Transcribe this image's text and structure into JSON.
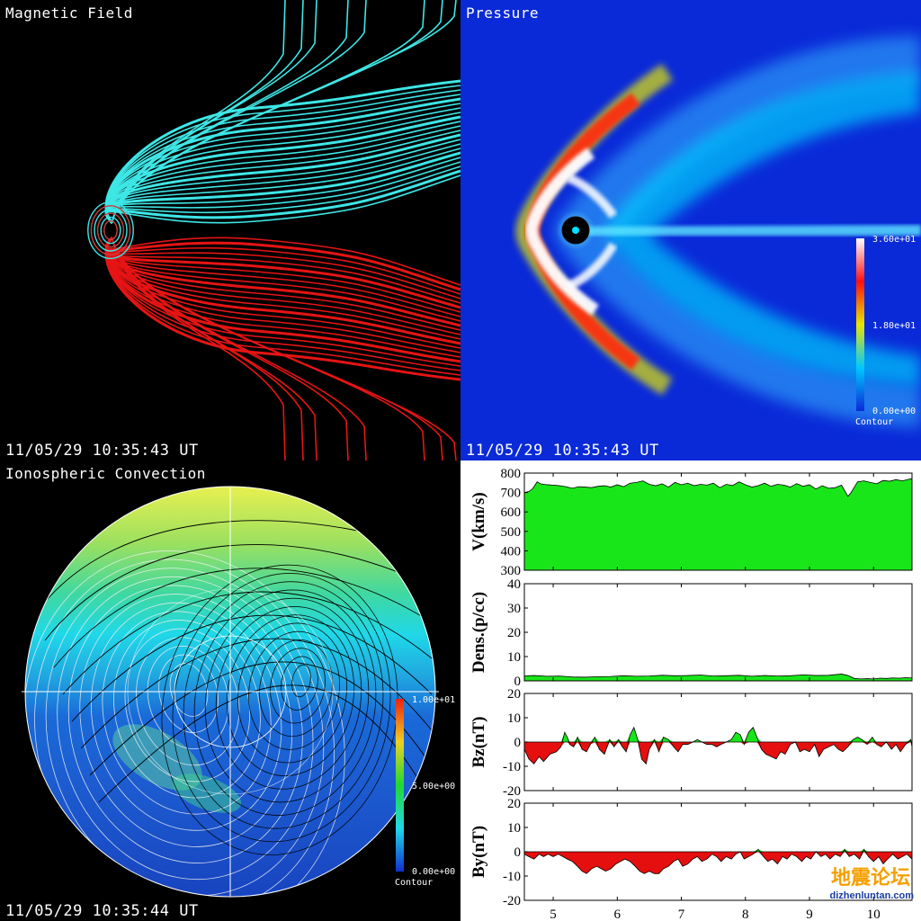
{
  "panels": {
    "magnetic": {
      "title": "Magnetic Field",
      "timestamp": "11/05/29 10:35:43 UT"
    },
    "pressure": {
      "title": "Pressure",
      "timestamp": "11/05/29 10:35:43 UT",
      "colorbar": {
        "max": "3.60e+01",
        "mid": "1.80e+01",
        "min": "0.00e+00",
        "label": "Contour"
      }
    },
    "iono": {
      "title": "Ionospheric Convection",
      "timestamp": "11/05/29 10:35:44 UT",
      "colorbar": {
        "max": "1.00e+01",
        "mid": "5.00e+00",
        "min": "0.00e+00",
        "label": "Contour"
      }
    }
  },
  "watermark": {
    "cn": "地震论坛",
    "url": "dizhenluntan.com"
  },
  "colors": {
    "speed_fill": "#19e619",
    "pos_fill": "#19e619",
    "neg_fill": "#e60f0f",
    "field_north": "#3ee6e6",
    "field_south": "#e61414"
  },
  "chart_data": {
    "type": "area",
    "x_ticks": [
      "5",
      "6",
      "7",
      "8",
      "9",
      "10"
    ],
    "xlim": [
      4.55,
      10.6
    ],
    "subplots": [
      {
        "id": "speed",
        "ylabel": "V(km/s)",
        "ylim": [
          300,
          800
        ],
        "baseline": 300,
        "yticks": [
          "300",
          "400",
          "500",
          "600",
          "700",
          "800"
        ],
        "x": [
          4.55,
          4.62,
          4.68,
          4.75,
          4.8,
          4.9,
          5.0,
          5.1,
          5.2,
          5.3,
          5.4,
          5.5,
          5.6,
          5.7,
          5.8,
          5.9,
          6.0,
          6.1,
          6.2,
          6.3,
          6.4,
          6.5,
          6.6,
          6.7,
          6.8,
          6.9,
          7.0,
          7.1,
          7.2,
          7.3,
          7.4,
          7.5,
          7.6,
          7.7,
          7.8,
          7.9,
          8.0,
          8.1,
          8.2,
          8.3,
          8.4,
          8.5,
          8.6,
          8.7,
          8.8,
          8.9,
          9.0,
          9.1,
          9.2,
          9.3,
          9.4,
          9.5,
          9.6,
          9.65,
          9.75,
          9.85,
          9.95,
          10.05,
          10.15,
          10.25,
          10.35,
          10.45,
          10.55,
          10.6
        ],
        "values": [
          700,
          705,
          720,
          755,
          745,
          740,
          738,
          735,
          730,
          722,
          730,
          728,
          725,
          732,
          735,
          728,
          740,
          730,
          748,
          752,
          760,
          742,
          735,
          745,
          728,
          752,
          740,
          748,
          735,
          742,
          738,
          748,
          725,
          742,
          736,
          755,
          740,
          728,
          735,
          748,
          732,
          742,
          738,
          728,
          746,
          732,
          740,
          718,
          735,
          722,
          725,
          738,
          680,
          700,
          755,
          760,
          752,
          745,
          762,
          758,
          766,
          760,
          768,
          772
        ]
      },
      {
        "id": "density",
        "ylabel": "Dens.(p/cc)",
        "ylim": [
          0,
          40
        ],
        "baseline": 0,
        "yticks": [
          "0",
          "10",
          "20",
          "30",
          "40"
        ],
        "x": [
          4.55,
          4.7,
          4.9,
          5.1,
          5.3,
          5.5,
          5.7,
          5.9,
          6.1,
          6.3,
          6.5,
          6.7,
          6.9,
          7.1,
          7.3,
          7.5,
          7.7,
          7.9,
          8.1,
          8.3,
          8.5,
          8.7,
          8.9,
          9.1,
          9.3,
          9.5,
          9.6,
          9.7,
          9.8,
          9.9,
          10.0,
          10.1,
          10.2,
          10.3,
          10.4,
          10.5,
          10.6
        ],
        "values": [
          2.0,
          2.2,
          1.9,
          2.0,
          1.6,
          1.5,
          1.7,
          1.8,
          2.1,
          1.9,
          2.0,
          2.3,
          2.1,
          2.2,
          2.4,
          2.0,
          2.1,
          2.3,
          1.9,
          2.2,
          2.0,
          2.1,
          2.5,
          2.2,
          2.3,
          2.8,
          2.2,
          1.0,
          0.8,
          0.9,
          0.8,
          1.1,
          1.0,
          1.2,
          1.1,
          1.3,
          1.2
        ]
      },
      {
        "id": "bz",
        "ylabel": "Bz(nT)",
        "ylim": [
          -20,
          20
        ],
        "baseline": 0,
        "yticks": [
          "-20",
          "-10",
          "0",
          "10",
          "20"
        ],
        "x": [
          4.55,
          4.62,
          4.7,
          4.78,
          4.85,
          4.95,
          5.05,
          5.12,
          5.18,
          5.22,
          5.26,
          5.32,
          5.38,
          5.45,
          5.52,
          5.58,
          5.65,
          5.72,
          5.8,
          5.88,
          5.95,
          6.02,
          6.08,
          6.14,
          6.2,
          6.26,
          6.32,
          6.38,
          6.45,
          6.5,
          6.58,
          6.65,
          6.72,
          6.8,
          6.88,
          6.95,
          7.02,
          7.1,
          7.18,
          7.25,
          7.32,
          7.4,
          7.48,
          7.55,
          7.62,
          7.7,
          7.78,
          7.85,
          7.92,
          7.98,
          8.05,
          8.12,
          8.18,
          8.25,
          8.32,
          8.4,
          8.48,
          8.55,
          8.62,
          8.7,
          8.78,
          8.85,
          8.92,
          9.0,
          9.08,
          9.15,
          9.22,
          9.3,
          9.38,
          9.45,
          9.52,
          9.6,
          9.68,
          9.75,
          9.82,
          9.9,
          9.98,
          10.05,
          10.12,
          10.2,
          10.28,
          10.35,
          10.42,
          10.5,
          10.58,
          10.6
        ],
        "values": [
          -3,
          -7,
          -9,
          -6,
          -8,
          -5,
          -4,
          -2,
          4,
          2,
          -1,
          -2,
          2,
          -3,
          -4,
          -1,
          2,
          -3,
          -5,
          1,
          -2,
          1,
          -2,
          -4,
          3,
          6,
          1,
          -7,
          -9,
          -3,
          1,
          -4,
          2,
          1,
          -2,
          -4,
          -1,
          -1,
          0,
          1,
          0,
          -1,
          -1,
          -2,
          -1,
          0,
          1,
          4,
          3,
          -1,
          4,
          6,
          2,
          -3,
          -5,
          -6,
          -7,
          -4,
          -5,
          -1,
          0,
          -4,
          -3,
          -4,
          -1,
          -6,
          -3,
          -2,
          -1,
          -3,
          -4,
          -2,
          1,
          2,
          1,
          -1,
          2,
          -1,
          -2,
          0,
          -3,
          -1,
          -4,
          -1,
          1,
          -2
        ]
      },
      {
        "id": "by",
        "ylabel": "By(nT)",
        "ylim": [
          -20,
          20
        ],
        "baseline": 0,
        "yticks": [
          "-20",
          "-10",
          "0",
          "10",
          "20"
        ],
        "x": [
          4.55,
          4.62,
          4.7,
          4.78,
          4.85,
          4.92,
          5.0,
          5.08,
          5.15,
          5.22,
          5.3,
          5.38,
          5.45,
          5.52,
          5.6,
          5.68,
          5.75,
          5.82,
          5.9,
          5.98,
          6.05,
          6.12,
          6.2,
          6.28,
          6.35,
          6.42,
          6.5,
          6.58,
          6.65,
          6.72,
          6.8,
          6.88,
          6.95,
          7.02,
          7.1,
          7.18,
          7.25,
          7.32,
          7.4,
          7.48,
          7.55,
          7.62,
          7.7,
          7.78,
          7.85,
          7.92,
          7.98,
          8.05,
          8.12,
          8.2,
          8.28,
          8.35,
          8.42,
          8.5,
          8.58,
          8.65,
          8.72,
          8.8,
          8.88,
          8.95,
          9.02,
          9.1,
          9.18,
          9.25,
          9.32,
          9.4,
          9.48,
          9.55,
          9.62,
          9.7,
          9.78,
          9.85,
          9.92,
          10.0,
          10.08,
          10.15,
          10.22,
          10.3,
          10.38,
          10.45,
          10.52,
          10.6
        ],
        "values": [
          -1,
          -2,
          -3,
          -1,
          -2,
          -1,
          -2,
          -1,
          -2,
          -3,
          -4,
          -6,
          -8,
          -9,
          -7,
          -6,
          -7,
          -8,
          -7,
          -5,
          -4,
          -3,
          -4,
          -6,
          -8,
          -9,
          -8,
          -9,
          -9,
          -7,
          -6,
          -4,
          -3,
          -6,
          -5,
          -3,
          -2,
          -4,
          -3,
          -1,
          -2,
          -4,
          -2,
          -3,
          -1,
          0,
          -3,
          -2,
          -1,
          1,
          -2,
          -4,
          -3,
          -5,
          -2,
          -3,
          -1,
          -2,
          -4,
          -2,
          -3,
          0,
          -2,
          -1,
          -3,
          -1,
          -2,
          1,
          -2,
          -1,
          -3,
          1,
          -2,
          -4,
          -2,
          -5,
          -3,
          -1,
          -3,
          -2,
          -1,
          -3
        ]
      }
    ]
  }
}
